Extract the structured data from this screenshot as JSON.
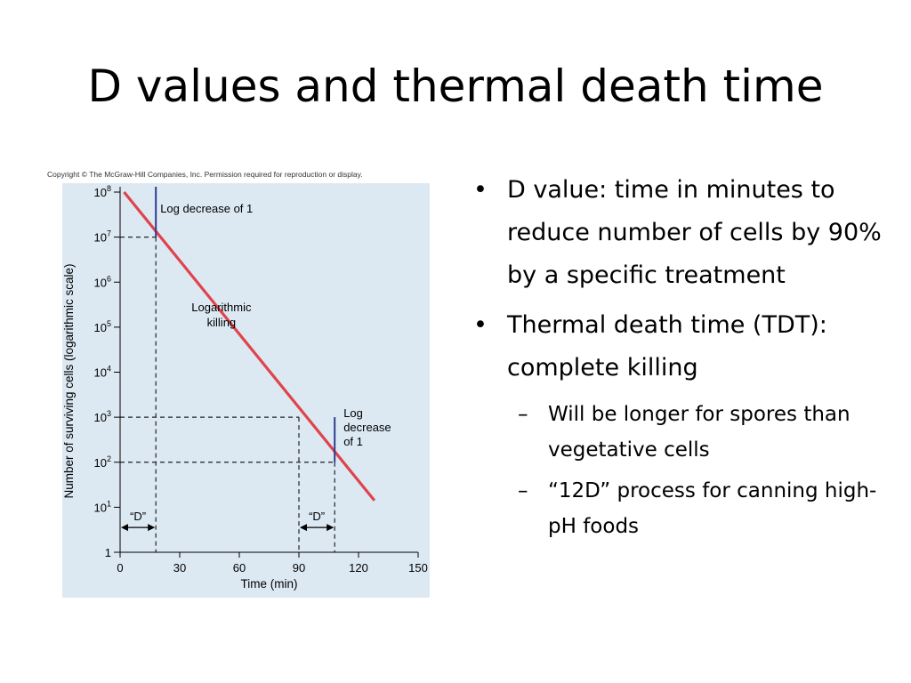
{
  "slide": {
    "title": "D values and thermal death time",
    "copyright": "Copyright © The McGraw-Hill Companies, Inc. Permission required for reproduction or display."
  },
  "bullets": [
    {
      "text": "D value: time in minutes to reduce number of cells by 90% by a specific treatment",
      "sub": []
    },
    {
      "text": "Thermal death time (TDT): complete killing",
      "sub": [
        "Will be longer for spores than vegetative cells",
        "“12D” process for canning high-pH foods"
      ]
    }
  ],
  "colors": {
    "plot_background": "#dce9f3",
    "line": "#e0434b",
    "marker": "#2f3b8f"
  },
  "chart_data": {
    "type": "line",
    "scale_y": "log10",
    "xlabel": "Time (min)",
    "ylabel": "Number of surviving cells (logarithmic scale)",
    "xlim": [
      0,
      150
    ],
    "ylim_log10": [
      0,
      8
    ],
    "x_ticks": [
      "0",
      "30",
      "60",
      "90",
      "120",
      "150"
    ],
    "x_tick_values": [
      0,
      30,
      60,
      90,
      120,
      150
    ],
    "y_ticks": [
      {
        "base": "1",
        "exp": "",
        "log": 0
      },
      {
        "base": "10",
        "exp": "1",
        "log": 1
      },
      {
        "base": "10",
        "exp": "2",
        "log": 2
      },
      {
        "base": "10",
        "exp": "3",
        "log": 3
      },
      {
        "base": "10",
        "exp": "4",
        "log": 4
      },
      {
        "base": "10",
        "exp": "5",
        "log": 5
      },
      {
        "base": "10",
        "exp": "6",
        "log": 6
      },
      {
        "base": "10",
        "exp": "7",
        "log": 7
      },
      {
        "base": "10",
        "exp": "8",
        "log": 8
      }
    ],
    "series": [
      {
        "points": [
          {
            "x": 2,
            "log10_y": 8.0
          },
          {
            "x": 128,
            "log10_y": 1.15
          }
        ]
      }
    ],
    "d_intervals": [
      {
        "label": "“D”",
        "x_start": 0,
        "x_end": 18,
        "log10_from": 8,
        "log10_to": 7
      },
      {
        "label": "“D”",
        "x_start": 90,
        "x_end": 108,
        "log10_from": 3,
        "log10_to": 2
      }
    ],
    "annotations": {
      "first_log_decrease": [
        "Log decrease of 1"
      ],
      "killing": [
        "Logarithmic",
        "killing"
      ],
      "second_log_decrease": [
        "Log",
        "decrease",
        "of 1"
      ]
    }
  }
}
